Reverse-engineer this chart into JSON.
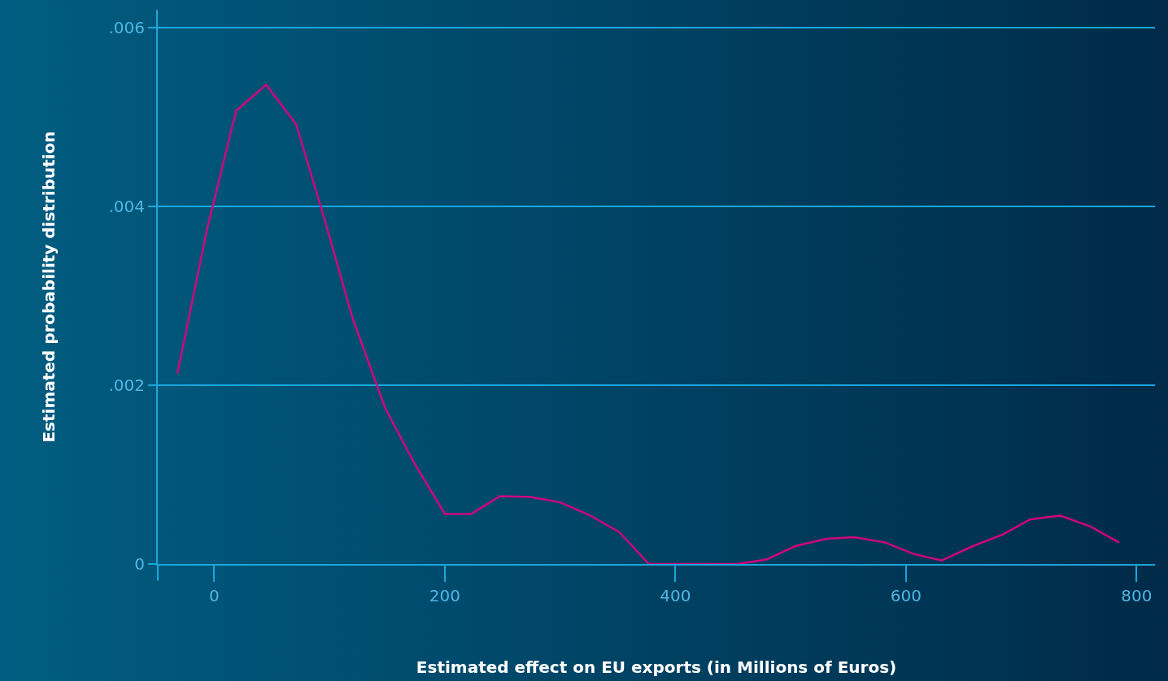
{
  "chart_data": {
    "type": "line",
    "xlabel": "Estimated effect on EU exports (in Millions of Euros)",
    "ylabel": "Estimated probability distribution",
    "x": [
      -32,
      -6,
      19,
      45,
      71,
      96,
      120,
      148,
      173,
      200,
      223,
      248,
      274,
      300,
      325,
      351,
      377,
      402,
      428,
      454,
      479,
      504,
      530,
      555,
      582,
      607,
      631,
      658,
      684,
      708,
      734,
      760,
      785
    ],
    "series": [
      {
        "color": "#d0067e",
        "values": [
          0.00213,
          0.00376,
          0.00507,
          0.00536,
          0.00492,
          0.00384,
          0.00275,
          0.00175,
          0.00114,
          0.00056,
          0.00056,
          0.00076,
          0.00075,
          0.00069,
          0.00055,
          0.00036,
          0,
          0,
          0,
          0,
          5e-05,
          0.0002,
          0.00028,
          0.0003,
          0.00024,
          0.00011,
          4e-05,
          0.0002,
          0.00033,
          0.0005,
          0.00054,
          0.00042,
          0.00024
        ]
      }
    ],
    "xlim": [
      -49,
      816
    ],
    "ylim": [
      0,
      0.0062
    ],
    "xticks": [
      0,
      200,
      400,
      600,
      800
    ],
    "yticks": [
      {
        "value": 0,
        "label": "0"
      },
      {
        "value": 0.002,
        "label": ".002"
      },
      {
        "value": 0.004,
        "label": ".004"
      },
      {
        "value": 0.006,
        "label": ".006"
      }
    ],
    "grid": "y",
    "marker": "none",
    "line_style": "solid"
  }
}
